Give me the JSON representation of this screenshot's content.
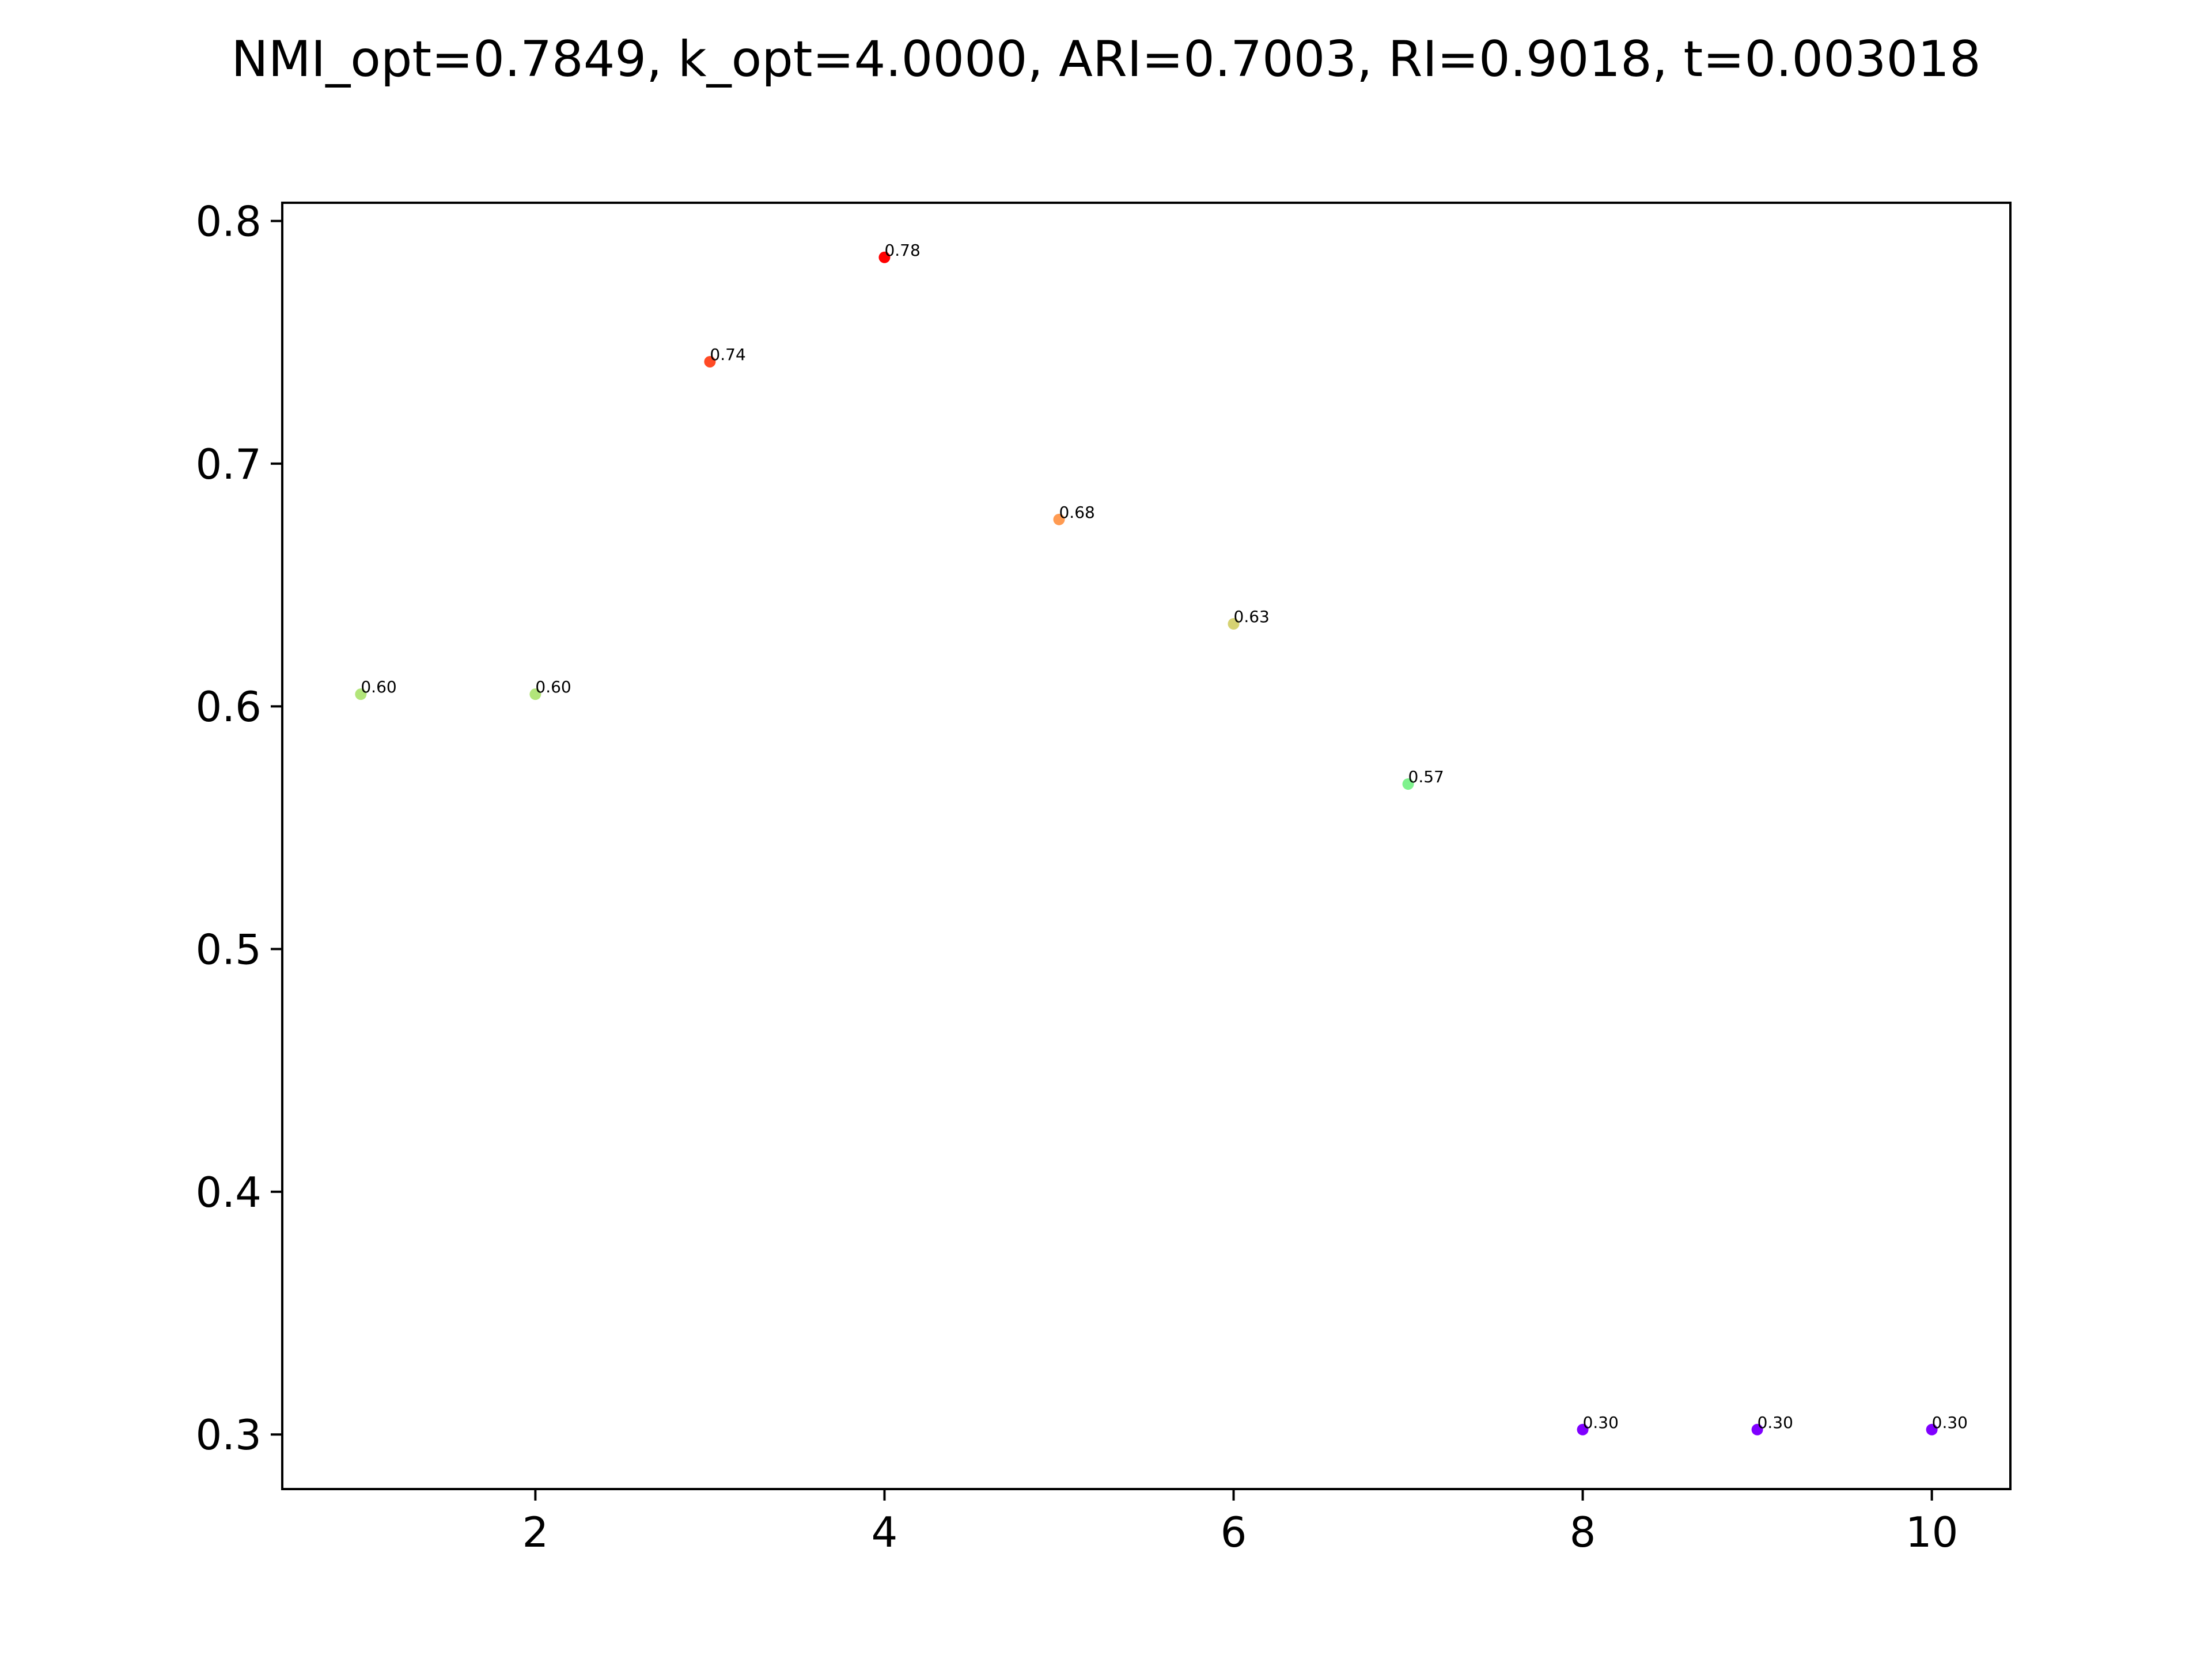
{
  "chart_data": {
    "type": "scatter",
    "title": "NMI_opt=0.7849, k_opt=4.0000, ARI=0.7003, RI=0.9018, t=0.003018",
    "xlabel": "",
    "ylabel": "",
    "xlim": [
      0.55,
      10.45
    ],
    "ylim": [
      0.2775,
      0.8075
    ],
    "x_ticks": [
      2,
      4,
      6,
      8,
      10
    ],
    "x_tick_labels": [
      "2",
      "4",
      "6",
      "8",
      "10"
    ],
    "y_ticks": [
      0.3,
      0.4,
      0.5,
      0.6,
      0.7,
      0.8
    ],
    "y_tick_labels": [
      "0.3",
      "0.4",
      "0.5",
      "0.6",
      "0.7",
      "0.8"
    ],
    "grid": false,
    "points": [
      {
        "x": 1,
        "y": 0.605,
        "label": "0.60",
        "color": "#b2e57a"
      },
      {
        "x": 2,
        "y": 0.605,
        "label": "0.60",
        "color": "#b2e57a"
      },
      {
        "x": 3,
        "y": 0.742,
        "label": "0.74",
        "color": "#ff4a25"
      },
      {
        "x": 4,
        "y": 0.785,
        "label": "0.78",
        "color": "#ff0000"
      },
      {
        "x": 5,
        "y": 0.677,
        "label": "0.68",
        "color": "#ff9b52"
      },
      {
        "x": 6,
        "y": 0.634,
        "label": "0.63",
        "color": "#d6d272"
      },
      {
        "x": 7,
        "y": 0.568,
        "label": "0.57",
        "color": "#7ff28e"
      },
      {
        "x": 8,
        "y": 0.302,
        "label": "0.30",
        "color": "#7f00ff"
      },
      {
        "x": 9,
        "y": 0.302,
        "label": "0.30",
        "color": "#7f00ff"
      },
      {
        "x": 10,
        "y": 0.302,
        "label": "0.30",
        "color": "#7f00ff"
      }
    ]
  }
}
